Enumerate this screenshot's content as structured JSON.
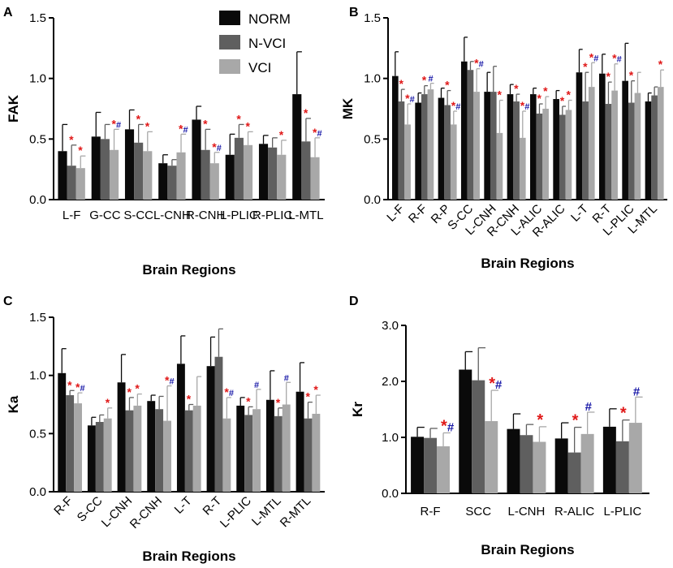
{
  "legend": {
    "entries": [
      "NORM",
      "N-VCI",
      "VCI"
    ],
    "colors": [
      "#0a0a0a",
      "#5f5f5f",
      "#a8a8a8"
    ]
  },
  "marker_colors": {
    "star": "#e01818",
    "hash": "#1a1aa8"
  },
  "chart_data": [
    {
      "panel": "A",
      "type": "bar",
      "ylabel": "FAK",
      "xlabel": "Brain Regions",
      "ylim": [
        0,
        1.5
      ],
      "yticks": [
        "0.0",
        "0.5",
        "1.0",
        "1.5"
      ],
      "categories": [
        "L-F",
        "G-CC",
        "S-CC",
        "L-CNH",
        "R-CNH",
        "L-PLIC",
        "R-PLIC",
        "L-MTL"
      ],
      "tick_rotation": 0,
      "series": [
        {
          "name": "NORM",
          "values": [
            0.4,
            0.52,
            0.58,
            0.3,
            0.66,
            0.37,
            0.46,
            0.87
          ],
          "errors": [
            0.22,
            0.2,
            0.16,
            0.07,
            0.11,
            0.17,
            0.07,
            0.35
          ]
        },
        {
          "name": "N-VCI",
          "values": [
            0.28,
            0.5,
            0.47,
            0.28,
            0.41,
            0.51,
            0.43,
            0.48
          ],
          "errors": [
            0.17,
            0.12,
            0.15,
            0.05,
            0.17,
            0.11,
            0.08,
            0.19
          ]
        },
        {
          "name": "VCI",
          "values": [
            0.26,
            0.41,
            0.4,
            0.39,
            0.3,
            0.45,
            0.37,
            0.35
          ],
          "errors": [
            0.1,
            0.17,
            0.16,
            0.15,
            0.09,
            0.11,
            0.12,
            0.16
          ]
        }
      ],
      "markers": [
        {
          "cat": 0,
          "series": 1,
          "label": "*"
        },
        {
          "cat": 0,
          "series": 2,
          "label": "*"
        },
        {
          "cat": 1,
          "series": 2,
          "label": "*#"
        },
        {
          "cat": 2,
          "series": 1,
          "label": "*"
        },
        {
          "cat": 2,
          "series": 2,
          "label": "*"
        },
        {
          "cat": 3,
          "series": 2,
          "label": "*#"
        },
        {
          "cat": 4,
          "series": 1,
          "label": "*"
        },
        {
          "cat": 4,
          "series": 2,
          "label": "*#"
        },
        {
          "cat": 5,
          "series": 1,
          "label": "*"
        },
        {
          "cat": 5,
          "series": 2,
          "label": "*"
        },
        {
          "cat": 6,
          "series": 2,
          "label": "*"
        },
        {
          "cat": 7,
          "series": 1,
          "label": "*"
        },
        {
          "cat": 7,
          "series": 2,
          "label": "*#"
        }
      ]
    },
    {
      "panel": "B",
      "type": "bar",
      "ylabel": "MK",
      "xlabel": "Brain Regions",
      "ylim": [
        0,
        1.5
      ],
      "yticks": [
        "0.0",
        "0.5",
        "1.0",
        "1.5"
      ],
      "categories": [
        "L-F",
        "R-F",
        "R-P",
        "S-CC",
        "L-CNH",
        "R-CNH",
        "L-ALIC",
        "R-ALIC",
        "L-T",
        "R-T",
        "L-PLIC",
        "L-MTL"
      ],
      "tick_rotation": -45,
      "series": [
        {
          "name": "NORM",
          "values": [
            1.02,
            0.8,
            0.84,
            1.14,
            0.89,
            0.87,
            0.87,
            0.83,
            1.05,
            1.04,
            0.98,
            0.81
          ],
          "errors": [
            0.2,
            0.08,
            0.08,
            0.2,
            0.16,
            0.08,
            0.05,
            0.07,
            0.19,
            0.16,
            0.31,
            0.07
          ]
        },
        {
          "name": "N-VCI",
          "values": [
            0.81,
            0.87,
            0.78,
            1.07,
            0.89,
            0.81,
            0.71,
            0.7,
            0.81,
            0.79,
            0.8,
            0.86
          ],
          "errors": [
            0.1,
            0.07,
            0.12,
            0.07,
            0.21,
            0.06,
            0.08,
            0.07,
            0.24,
            0.18,
            0.18,
            0.07
          ]
        },
        {
          "name": "VCI",
          "values": [
            0.62,
            0.91,
            0.62,
            0.89,
            0.55,
            0.51,
            0.75,
            0.74,
            0.93,
            0.9,
            0.88,
            0.93
          ],
          "errors": [
            0.17,
            0.05,
            0.11,
            0.19,
            0.27,
            0.22,
            0.1,
            0.08,
            0.2,
            0.22,
            0.17,
            0.14
          ]
        }
      ],
      "markers": [
        {
          "cat": 0,
          "series": 1,
          "label": "*"
        },
        {
          "cat": 0,
          "series": 2,
          "label": "*#"
        },
        {
          "cat": 1,
          "series": 1,
          "label": "*"
        },
        {
          "cat": 1,
          "series": 2,
          "label": "#"
        },
        {
          "cat": 2,
          "series": 1,
          "label": "*"
        },
        {
          "cat": 2,
          "series": 2,
          "label": "*#"
        },
        {
          "cat": 3,
          "series": 2,
          "label": "*#"
        },
        {
          "cat": 4,
          "series": 2,
          "label": "*"
        },
        {
          "cat": 5,
          "series": 1,
          "label": "*"
        },
        {
          "cat": 5,
          "series": 2,
          "label": "*#"
        },
        {
          "cat": 6,
          "series": 1,
          "label": "*"
        },
        {
          "cat": 6,
          "series": 2,
          "label": "*"
        },
        {
          "cat": 7,
          "series": 1,
          "label": "*"
        },
        {
          "cat": 7,
          "series": 2,
          "label": "*"
        },
        {
          "cat": 8,
          "series": 1,
          "label": "*"
        },
        {
          "cat": 8,
          "series": 2,
          "label": "*#"
        },
        {
          "cat": 9,
          "series": 1,
          "label": "*"
        },
        {
          "cat": 9,
          "series": 2,
          "label": "*#"
        },
        {
          "cat": 10,
          "series": 1,
          "label": "*"
        },
        {
          "cat": 11,
          "series": 2,
          "label": "*"
        }
      ]
    },
    {
      "panel": "C",
      "type": "bar",
      "ylabel": "Ka",
      "xlabel": "Brain Regions",
      "ylim": [
        0,
        1.5
      ],
      "yticks": [
        "0.0",
        "0.5",
        "1.0",
        "1.5"
      ],
      "categories": [
        "R-F",
        "S-CC",
        "L-CNH",
        "R-CNH",
        "L-T",
        "R-T",
        "L-PLIC",
        "L-MTL",
        "R-MTL"
      ],
      "tick_rotation": -45,
      "series": [
        {
          "name": "NORM",
          "values": [
            1.02,
            0.57,
            0.94,
            0.78,
            1.1,
            1.08,
            0.74,
            0.79,
            0.86
          ],
          "errors": [
            0.21,
            0.07,
            0.24,
            0.05,
            0.24,
            0.25,
            0.07,
            0.25,
            0.25
          ]
        },
        {
          "name": "N-VCI",
          "values": [
            0.83,
            0.6,
            0.7,
            0.71,
            0.7,
            1.16,
            0.66,
            0.65,
            0.63
          ],
          "errors": [
            0.04,
            0.06,
            0.11,
            0.11,
            0.05,
            0.24,
            0.07,
            0.07,
            0.14
          ]
        },
        {
          "name": "VCI",
          "values": [
            0.76,
            0.63,
            0.74,
            0.61,
            0.74,
            0.63,
            0.71,
            0.75,
            0.67
          ],
          "errors": [
            0.09,
            0.09,
            0.1,
            0.3,
            0.25,
            0.18,
            0.17,
            0.19,
            0.16
          ]
        }
      ],
      "markers": [
        {
          "cat": 0,
          "series": 1,
          "label": "*"
        },
        {
          "cat": 0,
          "series": 2,
          "label": "*#"
        },
        {
          "cat": 1,
          "series": 2,
          "label": "*"
        },
        {
          "cat": 2,
          "series": 1,
          "label": "*"
        },
        {
          "cat": 2,
          "series": 2,
          "label": "*"
        },
        {
          "cat": 3,
          "series": 2,
          "label": "*#"
        },
        {
          "cat": 4,
          "series": 1,
          "label": "*"
        },
        {
          "cat": 5,
          "series": 2,
          "label": "*#"
        },
        {
          "cat": 6,
          "series": 1,
          "label": "*"
        },
        {
          "cat": 6,
          "series": 2,
          "label": "#"
        },
        {
          "cat": 7,
          "series": 1,
          "label": "*"
        },
        {
          "cat": 7,
          "series": 2,
          "label": "#"
        },
        {
          "cat": 8,
          "series": 1,
          "label": "*"
        },
        {
          "cat": 8,
          "series": 2,
          "label": "*"
        }
      ]
    },
    {
      "panel": "D",
      "type": "bar",
      "ylabel": "Kr",
      "xlabel": "Brain Regions",
      "ylim": [
        0,
        3.0
      ],
      "yticks": [
        "0.0",
        "1.0",
        "2.0",
        "3.0"
      ],
      "categories": [
        "R-F",
        "SCC",
        "L-CNH",
        "R-ALIC",
        "L-PLIC"
      ],
      "tick_rotation": 0,
      "series": [
        {
          "name": "NORM",
          "values": [
            1.01,
            2.21,
            1.15,
            0.98,
            1.19
          ],
          "errors": [
            0.17,
            0.32,
            0.27,
            0.28,
            0.32
          ]
        },
        {
          "name": "N-VCI",
          "values": [
            0.99,
            2.02,
            1.04,
            0.73,
            0.93
          ],
          "errors": [
            0.17,
            0.58,
            0.19,
            0.45,
            0.38
          ]
        },
        {
          "name": "VCI",
          "values": [
            0.84,
            1.29,
            0.92,
            1.06,
            1.26
          ],
          "errors": [
            0.24,
            0.55,
            0.27,
            0.39,
            0.46
          ]
        }
      ],
      "markers": [
        {
          "cat": 0,
          "series": 2,
          "label": "*#"
        },
        {
          "cat": 1,
          "series": 2,
          "label": "*#"
        },
        {
          "cat": 2,
          "series": 2,
          "label": "*"
        },
        {
          "cat": 3,
          "series": 1,
          "label": "*"
        },
        {
          "cat": 3,
          "series": 2,
          "label": "#"
        },
        {
          "cat": 4,
          "series": 1,
          "label": "*"
        },
        {
          "cat": 4,
          "series": 2,
          "label": "#"
        }
      ]
    }
  ]
}
